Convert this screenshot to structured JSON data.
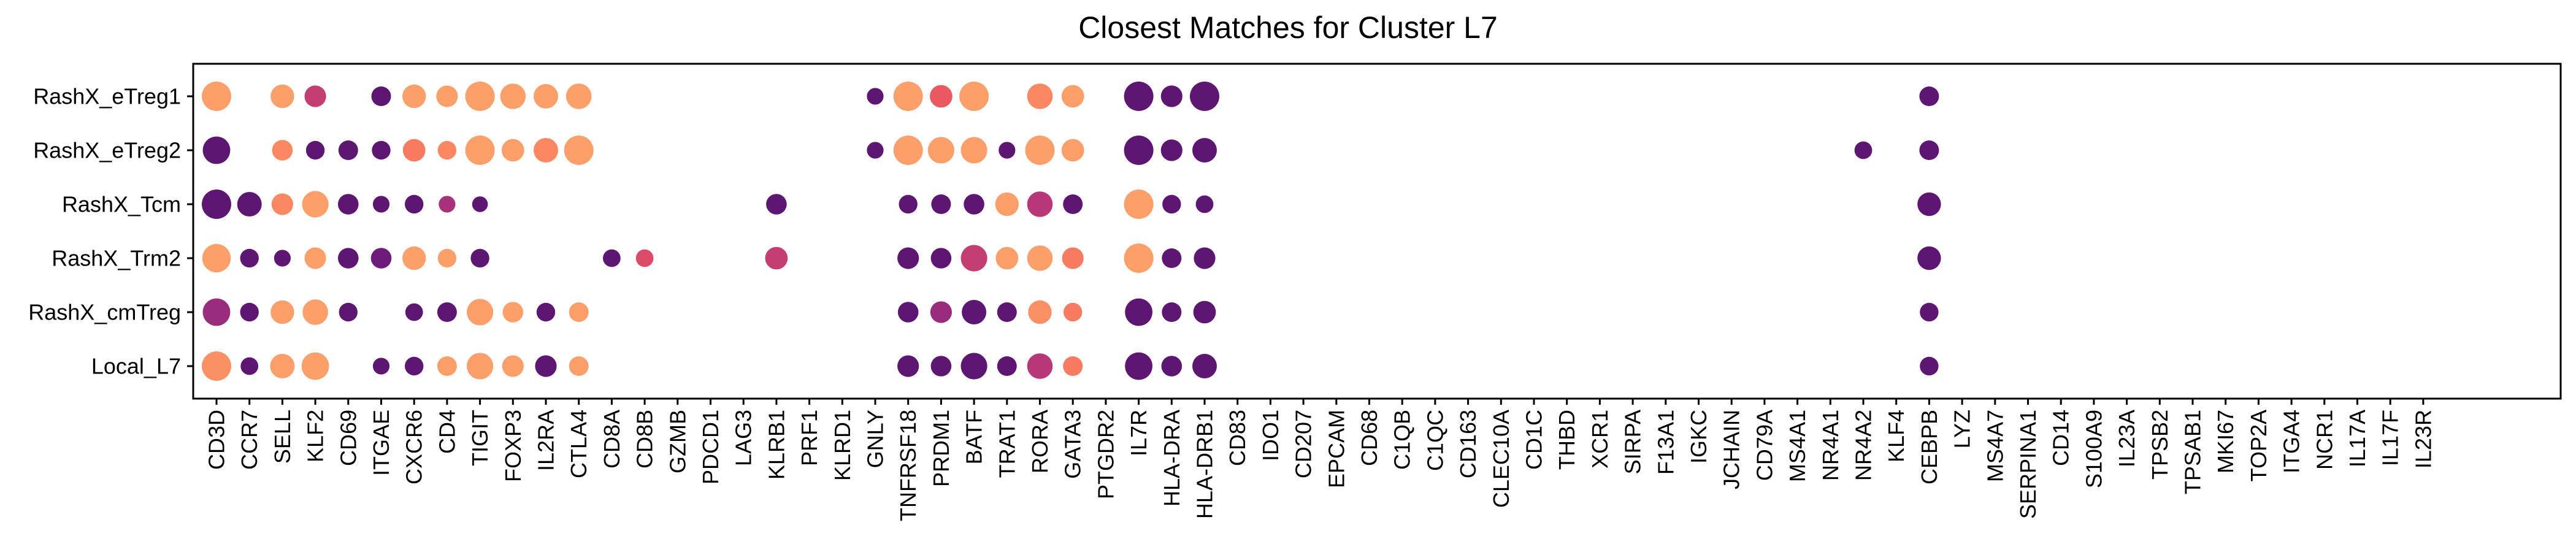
{
  "chart_data": {
    "type": "dotplot",
    "title": "Closest Matches for Cluster L7",
    "xlabel": "",
    "ylabel": "",
    "legend": "none",
    "grid": false,
    "rows": [
      "RashX_eTreg1",
      "RashX_eTreg2",
      "RashX_Tcm",
      "RashX_Trm2",
      "RashX_cmTreg",
      "Local_L7"
    ],
    "genes": [
      "CD3D",
      "CCR7",
      "SELL",
      "KLF2",
      "CD69",
      "ITGAE",
      "CXCR6",
      "CD4",
      "TIGIT",
      "FOXP3",
      "IL2RA",
      "CTLA4",
      "CD8A",
      "CD8B",
      "GZMB",
      "PDCD1",
      "LAG3",
      "KLRB1",
      "PRF1",
      "KLRD1",
      "GNLY",
      "TNFRSF18",
      "PRDM1",
      "BATF",
      "TRAT1",
      "RORA",
      "GATA3",
      "PTGDR2",
      "IL7R",
      "HLA-DRA",
      "HLA-DRB1",
      "CD83",
      "IDO1",
      "CD207",
      "EPCAM",
      "CD68",
      "C1QB",
      "C1QC",
      "CD163",
      "CLEC10A",
      "CD1C",
      "THBD",
      "XCR1",
      "SIRPA",
      "F13A1",
      "IGKC",
      "JCHAIN",
      "CD79A",
      "MS4A1",
      "NR4A1",
      "NR4A2",
      "KLF4",
      "CEBPB",
      "LYZ",
      "MS4A7",
      "SERPINA1",
      "CD14",
      "S100A9",
      "IL23A",
      "TPSB2",
      "TPSAB1",
      "MKI67",
      "TOP2A",
      "ITGA4",
      "NCR1",
      "IL17A",
      "IL17F",
      "IL23R"
    ],
    "dots": [
      {
        "row": "RashX_eTreg1",
        "gene": "CD3D",
        "size": 1.0,
        "color": 0.95
      },
      {
        "row": "RashX_eTreg1",
        "gene": "SELL",
        "size": 0.7,
        "color": 0.95
      },
      {
        "row": "RashX_eTreg1",
        "gene": "KLF2",
        "size": 0.6,
        "color": 0.45
      },
      {
        "row": "RashX_eTreg1",
        "gene": "ITGAE",
        "size": 0.5,
        "color": 0.08
      },
      {
        "row": "RashX_eTreg1",
        "gene": "CXCR6",
        "size": 0.7,
        "color": 0.95
      },
      {
        "row": "RashX_eTreg1",
        "gene": "CD4",
        "size": 0.6,
        "color": 0.95
      },
      {
        "row": "RashX_eTreg1",
        "gene": "TIGIT",
        "size": 1.0,
        "color": 0.95
      },
      {
        "row": "RashX_eTreg1",
        "gene": "FOXP3",
        "size": 0.8,
        "color": 0.95
      },
      {
        "row": "RashX_eTreg1",
        "gene": "IL2RA",
        "size": 0.75,
        "color": 0.95
      },
      {
        "row": "RashX_eTreg1",
        "gene": "CTLA4",
        "size": 0.8,
        "color": 0.95
      },
      {
        "row": "RashX_eTreg1",
        "gene": "GNLY",
        "size": 0.35,
        "color": 0.08
      },
      {
        "row": "RashX_eTreg1",
        "gene": "TNFRSF18",
        "size": 1.0,
        "color": 0.95
      },
      {
        "row": "RashX_eTreg1",
        "gene": "PRDM1",
        "size": 0.65,
        "color": 0.62
      },
      {
        "row": "RashX_eTreg1",
        "gene": "BATF",
        "size": 1.0,
        "color": 0.95
      },
      {
        "row": "RashX_eTreg1",
        "gene": "RORA",
        "size": 0.8,
        "color": 0.8
      },
      {
        "row": "RashX_eTreg1",
        "gene": "GATA3",
        "size": 0.65,
        "color": 0.95
      },
      {
        "row": "RashX_eTreg1",
        "gene": "IL7R",
        "size": 1.0,
        "color": 0.08
      },
      {
        "row": "RashX_eTreg1",
        "gene": "HLA-DRA",
        "size": 0.6,
        "color": 0.08
      },
      {
        "row": "RashX_eTreg1",
        "gene": "HLA-DRB1",
        "size": 1.0,
        "color": 0.08
      },
      {
        "row": "RashX_eTreg1",
        "gene": "CEBPB",
        "size": 0.5,
        "color": 0.08
      },
      {
        "row": "RashX_eTreg2",
        "gene": "CD3D",
        "size": 0.9,
        "color": 0.08
      },
      {
        "row": "RashX_eTreg2",
        "gene": "SELL",
        "size": 0.55,
        "color": 0.8
      },
      {
        "row": "RashX_eTreg2",
        "gene": "KLF2",
        "size": 0.45,
        "color": 0.08
      },
      {
        "row": "RashX_eTreg2",
        "gene": "CD69",
        "size": 0.5,
        "color": 0.08
      },
      {
        "row": "RashX_eTreg2",
        "gene": "ITGAE",
        "size": 0.45,
        "color": 0.08
      },
      {
        "row": "RashX_eTreg2",
        "gene": "CXCR6",
        "size": 0.65,
        "color": 0.75
      },
      {
        "row": "RashX_eTreg2",
        "gene": "CD4",
        "size": 0.45,
        "color": 0.8
      },
      {
        "row": "RashX_eTreg2",
        "gene": "TIGIT",
        "size": 1.0,
        "color": 0.95
      },
      {
        "row": "RashX_eTreg2",
        "gene": "FOXP3",
        "size": 0.65,
        "color": 0.95
      },
      {
        "row": "RashX_eTreg2",
        "gene": "IL2RA",
        "size": 0.75,
        "color": 0.8
      },
      {
        "row": "RashX_eTreg2",
        "gene": "CTLA4",
        "size": 1.0,
        "color": 0.95
      },
      {
        "row": "RashX_eTreg2",
        "gene": "GNLY",
        "size": 0.35,
        "color": 0.08
      },
      {
        "row": "RashX_eTreg2",
        "gene": "TNFRSF18",
        "size": 1.0,
        "color": 0.95
      },
      {
        "row": "RashX_eTreg2",
        "gene": "PRDM1",
        "size": 0.85,
        "color": 0.95
      },
      {
        "row": "RashX_eTreg2",
        "gene": "BATF",
        "size": 0.85,
        "color": 0.95
      },
      {
        "row": "RashX_eTreg2",
        "gene": "TRAT1",
        "size": 0.35,
        "color": 0.08
      },
      {
        "row": "RashX_eTreg2",
        "gene": "RORA",
        "size": 1.0,
        "color": 0.95
      },
      {
        "row": "RashX_eTreg2",
        "gene": "GATA3",
        "size": 0.65,
        "color": 0.95
      },
      {
        "row": "RashX_eTreg2",
        "gene": "IL7R",
        "size": 1.0,
        "color": 0.08
      },
      {
        "row": "RashX_eTreg2",
        "gene": "HLA-DRA",
        "size": 0.6,
        "color": 0.08
      },
      {
        "row": "RashX_eTreg2",
        "gene": "HLA-DRB1",
        "size": 0.75,
        "color": 0.08
      },
      {
        "row": "RashX_eTreg2",
        "gene": "NR4A2",
        "size": 0.4,
        "color": 0.08
      },
      {
        "row": "RashX_eTreg2",
        "gene": "CEBPB",
        "size": 0.5,
        "color": 0.08
      },
      {
        "row": "RashX_Tcm",
        "gene": "CD3D",
        "size": 1.0,
        "color": 0.08
      },
      {
        "row": "RashX_Tcm",
        "gene": "CCR7",
        "size": 0.75,
        "color": 0.08
      },
      {
        "row": "RashX_Tcm",
        "gene": "SELL",
        "size": 0.6,
        "color": 0.8
      },
      {
        "row": "RashX_Tcm",
        "gene": "KLF2",
        "size": 0.85,
        "color": 0.95
      },
      {
        "row": "RashX_Tcm",
        "gene": "CD69",
        "size": 0.55,
        "color": 0.08
      },
      {
        "row": "RashX_Tcm",
        "gene": "ITGAE",
        "size": 0.35,
        "color": 0.08
      },
      {
        "row": "RashX_Tcm",
        "gene": "CXCR6",
        "size": 0.45,
        "color": 0.08
      },
      {
        "row": "RashX_Tcm",
        "gene": "CD4",
        "size": 0.35,
        "color": 0.35
      },
      {
        "row": "RashX_Tcm",
        "gene": "TIGIT",
        "size": 0.3,
        "color": 0.08
      },
      {
        "row": "RashX_Tcm",
        "gene": "KLRB1",
        "size": 0.55,
        "color": 0.08
      },
      {
        "row": "RashX_Tcm",
        "gene": "TNFRSF18",
        "size": 0.45,
        "color": 0.08
      },
      {
        "row": "RashX_Tcm",
        "gene": "PRDM1",
        "size": 0.5,
        "color": 0.08
      },
      {
        "row": "RashX_Tcm",
        "gene": "BATF",
        "size": 0.55,
        "color": 0.08
      },
      {
        "row": "RashX_Tcm",
        "gene": "TRAT1",
        "size": 0.7,
        "color": 0.95
      },
      {
        "row": "RashX_Tcm",
        "gene": "RORA",
        "size": 0.8,
        "color": 0.4
      },
      {
        "row": "RashX_Tcm",
        "gene": "GATA3",
        "size": 0.5,
        "color": 0.08
      },
      {
        "row": "RashX_Tcm",
        "gene": "IL7R",
        "size": 1.0,
        "color": 0.95
      },
      {
        "row": "RashX_Tcm",
        "gene": "HLA-DRA",
        "size": 0.45,
        "color": 0.08
      },
      {
        "row": "RashX_Tcm",
        "gene": "HLA-DRB1",
        "size": 0.4,
        "color": 0.08
      },
      {
        "row": "RashX_Tcm",
        "gene": "CEBPB",
        "size": 0.7,
        "color": 0.08
      },
      {
        "row": "RashX_Trm2",
        "gene": "CD3D",
        "size": 0.95,
        "color": 0.95
      },
      {
        "row": "RashX_Trm2",
        "gene": "CCR7",
        "size": 0.45,
        "color": 0.08
      },
      {
        "row": "RashX_Trm2",
        "gene": "SELL",
        "size": 0.35,
        "color": 0.08
      },
      {
        "row": "RashX_Trm2",
        "gene": "KLF2",
        "size": 0.6,
        "color": 0.95
      },
      {
        "row": "RashX_Trm2",
        "gene": "CD69",
        "size": 0.55,
        "color": 0.08
      },
      {
        "row": "RashX_Trm2",
        "gene": "ITGAE",
        "size": 0.55,
        "color": 0.15
      },
      {
        "row": "RashX_Trm2",
        "gene": "CXCR6",
        "size": 0.7,
        "color": 0.95
      },
      {
        "row": "RashX_Trm2",
        "gene": "CD4",
        "size": 0.45,
        "color": 0.95
      },
      {
        "row": "RashX_Trm2",
        "gene": "TIGIT",
        "size": 0.45,
        "color": 0.08
      },
      {
        "row": "RashX_Trm2",
        "gene": "CD8A",
        "size": 0.4,
        "color": 0.08
      },
      {
        "row": "RashX_Trm2",
        "gene": "CD8B",
        "size": 0.4,
        "color": 0.55
      },
      {
        "row": "RashX_Trm2",
        "gene": "KLRB1",
        "size": 0.65,
        "color": 0.45
      },
      {
        "row": "RashX_Trm2",
        "gene": "TNFRSF18",
        "size": 0.6,
        "color": 0.08
      },
      {
        "row": "RashX_Trm2",
        "gene": "PRDM1",
        "size": 0.55,
        "color": 0.08
      },
      {
        "row": "RashX_Trm2",
        "gene": "BATF",
        "size": 0.85,
        "color": 0.45
      },
      {
        "row": "RashX_Trm2",
        "gene": "TRAT1",
        "size": 0.65,
        "color": 0.95
      },
      {
        "row": "RashX_Trm2",
        "gene": "RORA",
        "size": 0.8,
        "color": 0.95
      },
      {
        "row": "RashX_Trm2",
        "gene": "GATA3",
        "size": 0.6,
        "color": 0.75
      },
      {
        "row": "RashX_Trm2",
        "gene": "IL7R",
        "size": 1.0,
        "color": 0.95
      },
      {
        "row": "RashX_Trm2",
        "gene": "HLA-DRA",
        "size": 0.5,
        "color": 0.08
      },
      {
        "row": "RashX_Trm2",
        "gene": "HLA-DRB1",
        "size": 0.6,
        "color": 0.08
      },
      {
        "row": "RashX_Trm2",
        "gene": "CEBPB",
        "size": 0.7,
        "color": 0.08
      },
      {
        "row": "RashX_cmTreg",
        "gene": "CD3D",
        "size": 0.9,
        "color": 0.3
      },
      {
        "row": "RashX_cmTreg",
        "gene": "CCR7",
        "size": 0.45,
        "color": 0.08
      },
      {
        "row": "RashX_cmTreg",
        "gene": "SELL",
        "size": 0.7,
        "color": 0.95
      },
      {
        "row": "RashX_cmTreg",
        "gene": "KLF2",
        "size": 0.8,
        "color": 0.95
      },
      {
        "row": "RashX_cmTreg",
        "gene": "CD69",
        "size": 0.45,
        "color": 0.08
      },
      {
        "row": "RashX_cmTreg",
        "gene": "CXCR6",
        "size": 0.4,
        "color": 0.08
      },
      {
        "row": "RashX_cmTreg",
        "gene": "CD4",
        "size": 0.5,
        "color": 0.08
      },
      {
        "row": "RashX_cmTreg",
        "gene": "TIGIT",
        "size": 0.85,
        "color": 0.95
      },
      {
        "row": "RashX_cmTreg",
        "gene": "FOXP3",
        "size": 0.55,
        "color": 0.95
      },
      {
        "row": "RashX_cmTreg",
        "gene": "IL2RA",
        "size": 0.45,
        "color": 0.08
      },
      {
        "row": "RashX_cmTreg",
        "gene": "CTLA4",
        "size": 0.5,
        "color": 0.95
      },
      {
        "row": "RashX_cmTreg",
        "gene": "TNFRSF18",
        "size": 0.55,
        "color": 0.08
      },
      {
        "row": "RashX_cmTreg",
        "gene": "PRDM1",
        "size": 0.6,
        "color": 0.3
      },
      {
        "row": "RashX_cmTreg",
        "gene": "BATF",
        "size": 0.75,
        "color": 0.08
      },
      {
        "row": "RashX_cmTreg",
        "gene": "TRAT1",
        "size": 0.5,
        "color": 0.08
      },
      {
        "row": "RashX_cmTreg",
        "gene": "RORA",
        "size": 0.7,
        "color": 0.85
      },
      {
        "row": "RashX_cmTreg",
        "gene": "GATA3",
        "size": 0.45,
        "color": 0.75
      },
      {
        "row": "RashX_cmTreg",
        "gene": "IL7R",
        "size": 0.9,
        "color": 0.08
      },
      {
        "row": "RashX_cmTreg",
        "gene": "HLA-DRA",
        "size": 0.5,
        "color": 0.08
      },
      {
        "row": "RashX_cmTreg",
        "gene": "HLA-DRB1",
        "size": 0.65,
        "color": 0.08
      },
      {
        "row": "RashX_cmTreg",
        "gene": "CEBPB",
        "size": 0.45,
        "color": 0.08
      },
      {
        "row": "Local_L7",
        "gene": "CD3D",
        "size": 1.0,
        "color": 0.85
      },
      {
        "row": "Local_L7",
        "gene": "CCR7",
        "size": 0.4,
        "color": 0.08
      },
      {
        "row": "Local_L7",
        "gene": "SELL",
        "size": 0.75,
        "color": 0.95
      },
      {
        "row": "Local_L7",
        "gene": "KLF2",
        "size": 0.9,
        "color": 0.95
      },
      {
        "row": "Local_L7",
        "gene": "ITGAE",
        "size": 0.35,
        "color": 0.08
      },
      {
        "row": "Local_L7",
        "gene": "CXCR6",
        "size": 0.45,
        "color": 0.08
      },
      {
        "row": "Local_L7",
        "gene": "CD4",
        "size": 0.5,
        "color": 0.95
      },
      {
        "row": "Local_L7",
        "gene": "TIGIT",
        "size": 0.85,
        "color": 0.95
      },
      {
        "row": "Local_L7",
        "gene": "FOXP3",
        "size": 0.6,
        "color": 0.95
      },
      {
        "row": "Local_L7",
        "gene": "IL2RA",
        "size": 0.6,
        "color": 0.08
      },
      {
        "row": "Local_L7",
        "gene": "CTLA4",
        "size": 0.5,
        "color": 0.95
      },
      {
        "row": "Local_L7",
        "gene": "TNFRSF18",
        "size": 0.6,
        "color": 0.08
      },
      {
        "row": "Local_L7",
        "gene": "PRDM1",
        "size": 0.55,
        "color": 0.08
      },
      {
        "row": "Local_L7",
        "gene": "BATF",
        "size": 0.85,
        "color": 0.08
      },
      {
        "row": "Local_L7",
        "gene": "TRAT1",
        "size": 0.5,
        "color": 0.08
      },
      {
        "row": "Local_L7",
        "gene": "RORA",
        "size": 0.8,
        "color": 0.4
      },
      {
        "row": "Local_L7",
        "gene": "GATA3",
        "size": 0.5,
        "color": 0.75
      },
      {
        "row": "Local_L7",
        "gene": "IL7R",
        "size": 0.9,
        "color": 0.08
      },
      {
        "row": "Local_L7",
        "gene": "HLA-DRA",
        "size": 0.55,
        "color": 0.08
      },
      {
        "row": "Local_L7",
        "gene": "HLA-DRB1",
        "size": 0.75,
        "color": 0.08
      },
      {
        "row": "Local_L7",
        "gene": "CEBPB",
        "size": 0.45,
        "color": 0.08
      }
    ],
    "colormap": [
      "#4b0f6b",
      "#7a2080",
      "#b73779",
      "#e85362",
      "#fb8861",
      "#fca66d"
    ]
  }
}
